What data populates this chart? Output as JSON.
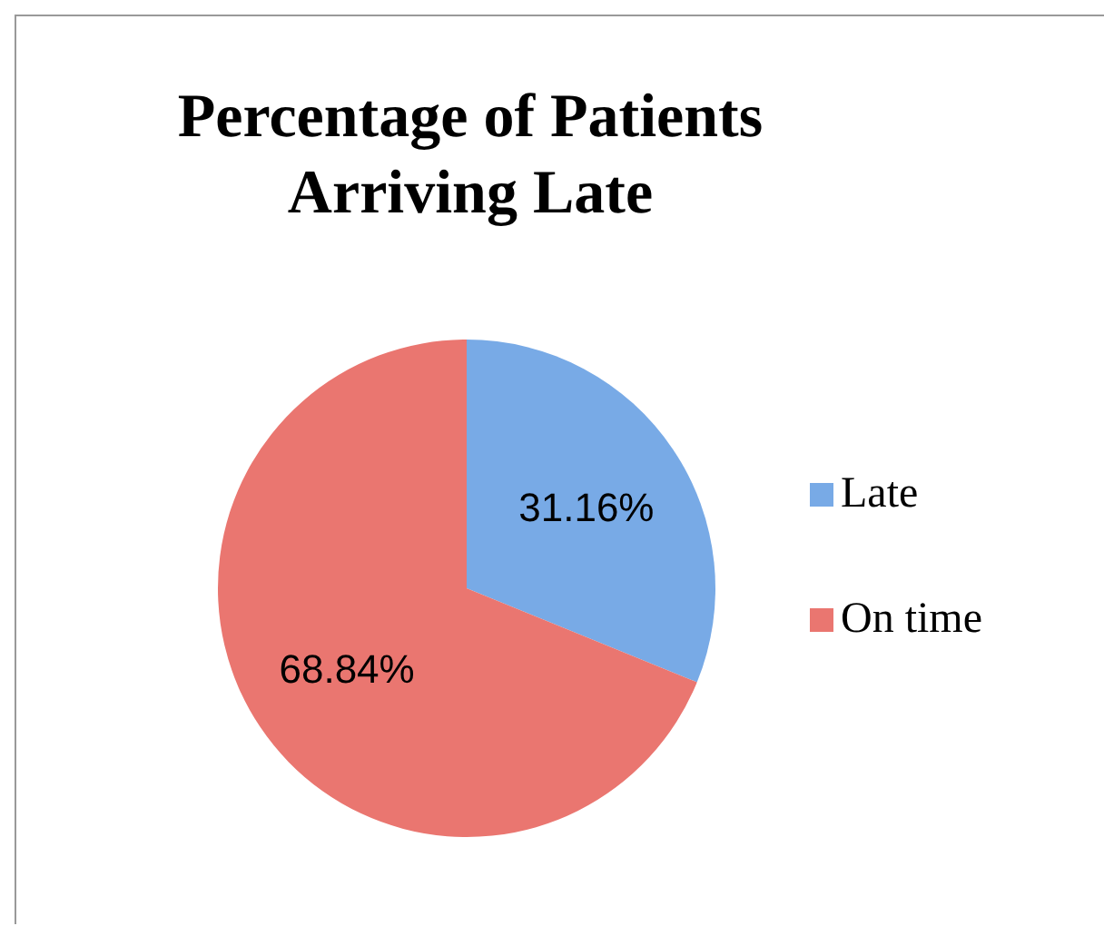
{
  "chart_data": {
    "type": "pie",
    "title": "Percentage of Patients Arriving Late",
    "categories": [
      "Late",
      "On time"
    ],
    "values": [
      31.16,
      68.84
    ],
    "colors": [
      "#78aae6",
      "#ea7670"
    ],
    "value_labels": [
      "31.16%",
      "68.84%"
    ],
    "legend": "right"
  }
}
